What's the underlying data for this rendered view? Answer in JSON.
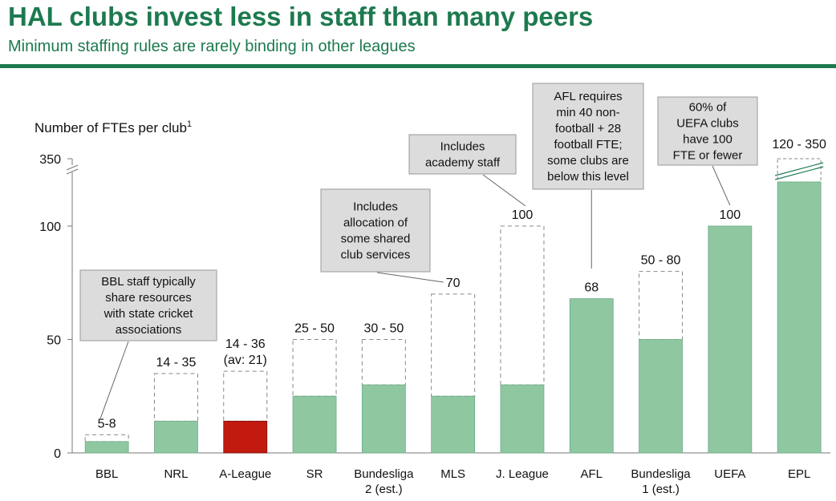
{
  "header": {
    "title": "HAL clubs invest less in staff than many peers",
    "subtitle": "Minimum staffing rules are rarely binding in other leagues"
  },
  "chart_data": {
    "type": "bar",
    "ylabel": "Number of FTEs per club",
    "ylabel_sup": "1",
    "y_ticks": [
      "0",
      "50",
      "100",
      "350"
    ],
    "axis_note": "Broken y-axis between 100 and 350",
    "colors": {
      "bar": "#8ec7a0",
      "highlight": "#c31a0f",
      "text_green": "#1d7a4f",
      "callout_fill": "#dcdcdc"
    },
    "categories": [
      "BBL",
      "NRL",
      "A-League",
      "SR",
      "Bundesliga 2 (est.)",
      "MLS",
      "J. League",
      "AFL",
      "Bundesliga 1 (est.)",
      "UEFA",
      "EPL"
    ],
    "category_lines": [
      [
        "BBL"
      ],
      [
        "NRL"
      ],
      [
        "A-League"
      ],
      [
        "SR"
      ],
      [
        "Bundesliga",
        "2 (est.)"
      ],
      [
        "MLS"
      ],
      [
        "J. League"
      ],
      [
        "AFL"
      ],
      [
        "Bundesliga",
        "1 (est.)"
      ],
      [
        "UEFA"
      ],
      [
        "EPL"
      ]
    ],
    "series": [
      {
        "name": "Minimum (solid)",
        "values": [
          5,
          14,
          14,
          25,
          30,
          25,
          30,
          68,
          50,
          100,
          120
        ]
      },
      {
        "name": "Maximum (dashed)",
        "values": [
          8,
          35,
          36,
          50,
          50,
          70,
          100,
          68,
          80,
          100,
          350
        ]
      }
    ],
    "highlight_index": 2,
    "value_labels": [
      [
        "5-8"
      ],
      [
        "14 - 35"
      ],
      [
        "14 - 36",
        "(av: 21)"
      ],
      [
        "25 - 50"
      ],
      [
        "30 - 50"
      ],
      [
        "70"
      ],
      [
        "100"
      ],
      [
        "68"
      ],
      [
        "50 - 80"
      ],
      [
        "100"
      ],
      [
        "120 - 350"
      ]
    ],
    "annotations": [
      {
        "lines": [
          "BBL staff typically",
          "share resources",
          "with state cricket",
          "associations"
        ],
        "points_to": "BBL"
      },
      {
        "lines": [
          "Includes",
          "allocation of",
          "some shared",
          "club services"
        ],
        "points_to": "MLS"
      },
      {
        "lines": [
          "Includes",
          "academy staff"
        ],
        "points_to": "J. League"
      },
      {
        "lines": [
          "AFL requires",
          "min 40 non-",
          "football + 28",
          "football FTE;",
          "some clubs are",
          "below this level"
        ],
        "points_to": "AFL"
      },
      {
        "lines": [
          "60% of",
          "UEFA clubs",
          "have 100",
          "FTE or fewer"
        ],
        "points_to": "UEFA"
      }
    ]
  }
}
